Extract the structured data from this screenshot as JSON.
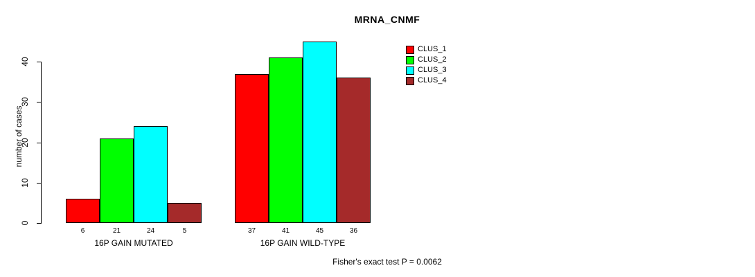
{
  "title": "MRNA_CNMF",
  "footer_note": "Fisher's exact test P = 0.0062",
  "chart_data": {
    "type": "bar",
    "title": "MRNA_CNMF",
    "categories": [
      "16P GAIN MUTATED",
      "16P GAIN WILD-TYPE"
    ],
    "series": [
      {
        "name": "CLUS_1",
        "color": "#ff0000",
        "values": [
          6,
          37
        ]
      },
      {
        "name": "CLUS_2",
        "color": "#00ff00",
        "values": [
          21,
          41
        ]
      },
      {
        "name": "CLUS_3",
        "color": "#00ffff",
        "values": [
          24,
          45
        ]
      },
      {
        "name": "CLUS_4",
        "color": "#a52a2a",
        "values": [
          5,
          36
        ]
      }
    ],
    "bar_value_labels": [
      [
        6,
        21,
        24,
        5
      ],
      [
        37,
        41,
        45,
        36
      ]
    ],
    "xlabel": "",
    "ylabel": "number of cases",
    "yticks": [
      0,
      10,
      20,
      30,
      40
    ],
    "ylim": [
      0,
      45
    ],
    "grid": false,
    "legend_position": "top-right",
    "annotation": "Fisher's exact test P = 0.0062",
    "axis_color": "#000000",
    "background_color": "#ffffff"
  }
}
